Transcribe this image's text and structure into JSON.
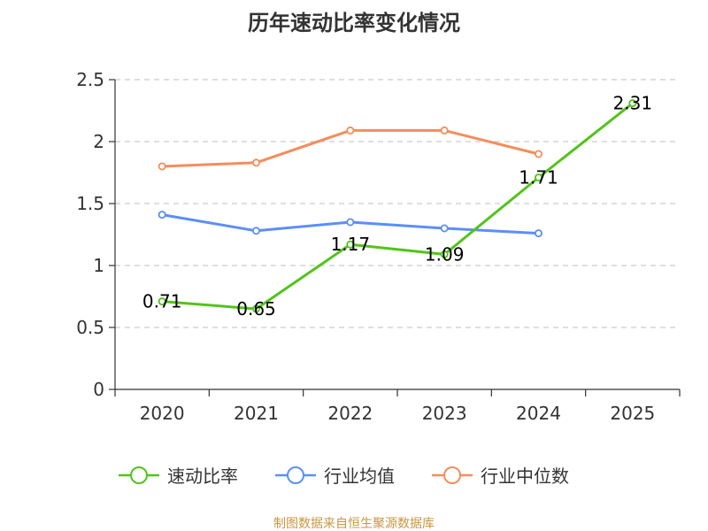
{
  "chart_data": {
    "type": "line",
    "title": "历年速动比率变化情况",
    "categories": [
      "2020",
      "2021",
      "2022",
      "2023",
      "2024",
      "2025"
    ],
    "y_ticks": [
      "0",
      "0.5",
      "1",
      "1.5",
      "2",
      "2.5"
    ],
    "ylim": [
      0,
      2.5
    ],
    "grid": true,
    "legend_position": "bottom",
    "series": [
      {
        "name": "速动比率",
        "color": "#52c41a",
        "values": [
          0.71,
          0.65,
          1.17,
          1.09,
          1.71,
          2.31
        ],
        "labels": [
          "0.71",
          "0.65",
          "1.17",
          "1.09",
          "1.71",
          "2.31"
        ]
      },
      {
        "name": "行业均值",
        "color": "#5b8ff9",
        "values": [
          1.41,
          1.28,
          1.35,
          1.3,
          1.26,
          null
        ]
      },
      {
        "name": "行业中位数",
        "color": "#f58d5b",
        "values": [
          1.8,
          1.83,
          2.09,
          2.09,
          1.9,
          null
        ]
      }
    ]
  },
  "source": {
    "text": "制图数据来自恒生聚源数据库",
    "color": "#c8973f"
  }
}
